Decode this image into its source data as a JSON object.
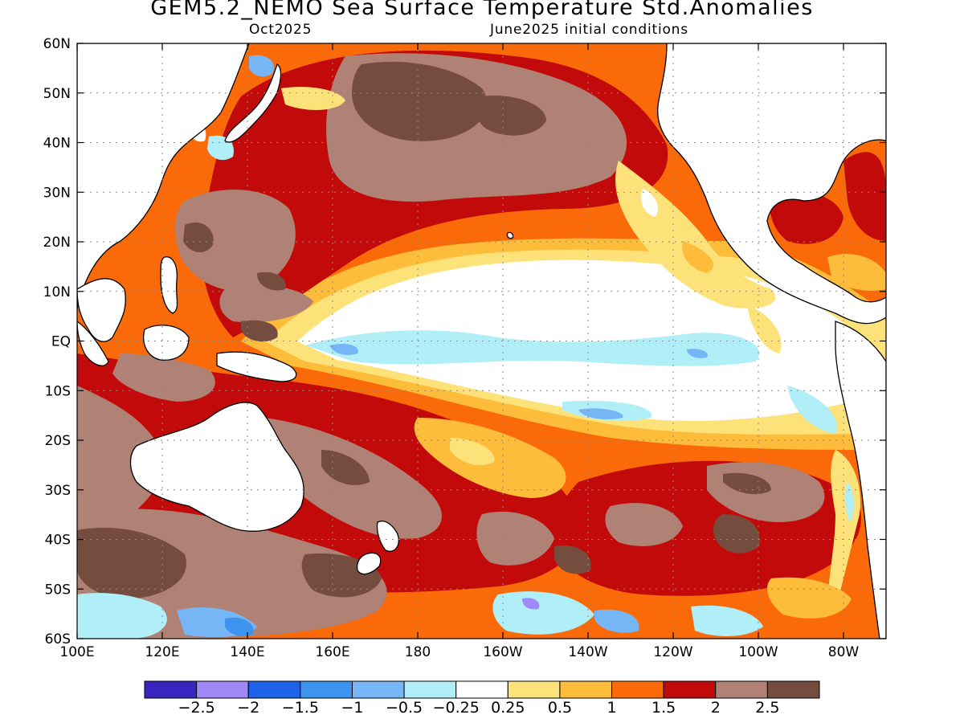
{
  "title": "GEM5.2_NEMO Sea Surface Temperature Std.Anomalies",
  "subtitle_left": "Oct2025",
  "subtitle_right": "June2025 initial conditions",
  "map": {
    "lon_range": [
      100,
      290
    ],
    "lat_range": [
      -60,
      60
    ],
    "lat_ticks": [
      "60N",
      "50N",
      "40N",
      "30N",
      "20N",
      "10N",
      "EQ",
      "10S",
      "20S",
      "30S",
      "40S",
      "50S",
      "60S"
    ],
    "lon_ticks": [
      "100E",
      "120E",
      "140E",
      "160E",
      "180",
      "160W",
      "140W",
      "120W",
      "100W",
      "80W"
    ],
    "grid": true
  },
  "colorbar": {
    "colors": [
      "#3a25c0",
      "#9e89f5",
      "#1f62ea",
      "#3d94f0",
      "#76b6f6",
      "#b0eef8",
      "#ffffff",
      "#fde27a",
      "#fdbd3a",
      "#fb6a08",
      "#c20a0a",
      "#b08276",
      "#744d3f"
    ],
    "labels": [
      "−2.5",
      "−2",
      "−1.5",
      "−1",
      "−0.5",
      "−0.25",
      "0.25",
      "0.5",
      "1",
      "1.5",
      "2",
      "2.5"
    ]
  }
}
